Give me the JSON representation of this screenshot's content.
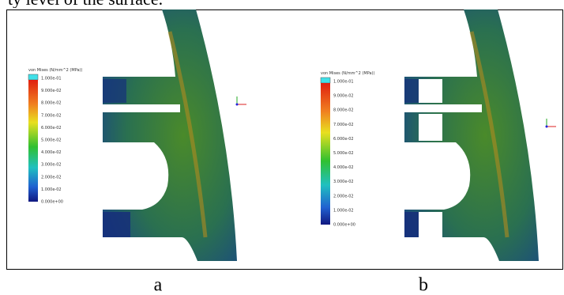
{
  "top_text": "ty level of the surface.",
  "panels": [
    {
      "caption": "a",
      "legend": {
        "title": "von Mises (N/mm^2 (MPa))",
        "labels": [
          "1.000e-01",
          "9.000e-02",
          "8.000e-02",
          "7.000e-02",
          "6.000e-02",
          "5.000e-02",
          "4.000e-02",
          "3.000e-02",
          "2.000e-02",
          "1.000e-02",
          "0.000e+00"
        ]
      }
    },
    {
      "caption": "b",
      "legend": {
        "title": "von Mises (N/mm^2 (MPa))",
        "labels": [
          "1.000e-01",
          "9.000e-02",
          "8.000e-02",
          "7.000e-02",
          "6.000e-02",
          "5.000e-02",
          "4.000e-02",
          "3.000e-02",
          "2.000e-02",
          "1.000e-02",
          "0.000e+00"
        ]
      }
    }
  ]
}
